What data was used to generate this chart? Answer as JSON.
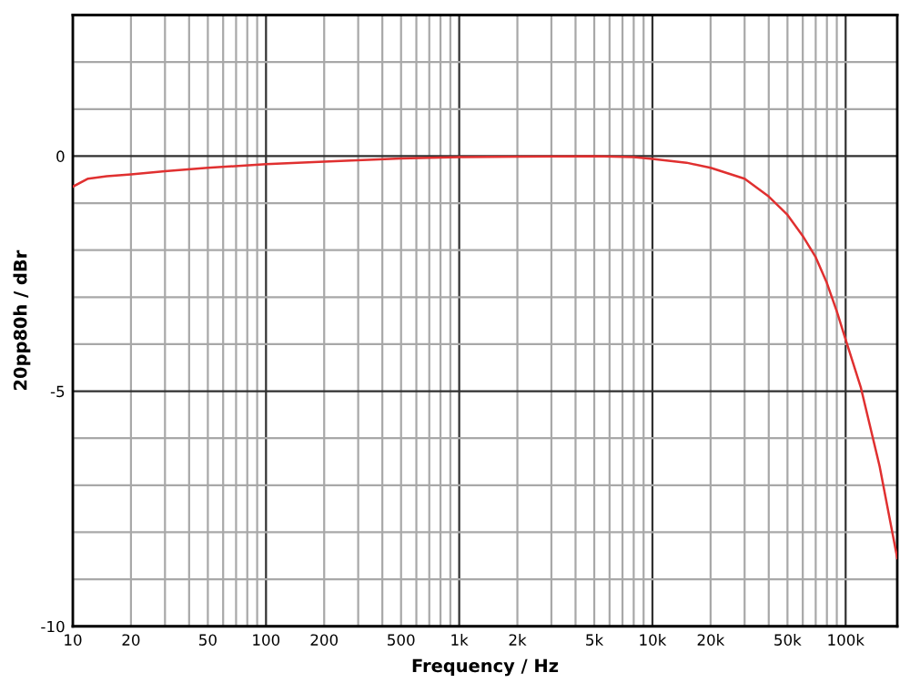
{
  "chart_data": {
    "type": "line",
    "xlabel": "Frequency / Hz",
    "ylabel": "20pp80h / dBr",
    "log": "x",
    "grid": true,
    "marker": "none",
    "line_style": "solid",
    "xlim": [
      10,
      185000
    ],
    "ylim": [
      -10,
      3
    ],
    "xticks": [
      10,
      20,
      {
        "value": 30,
        "label": null
      },
      {
        "value": 40,
        "label": null
      },
      50,
      {
        "value": 60,
        "label": null
      },
      {
        "value": 70,
        "label": null
      },
      {
        "value": 80,
        "label": null
      },
      {
        "value": 90,
        "label": null
      },
      100,
      200,
      {
        "value": 300,
        "label": null
      },
      {
        "value": 400,
        "label": null
      },
      500,
      {
        "value": 600,
        "label": null
      },
      {
        "value": 700,
        "label": null
      },
      {
        "value": 800,
        "label": null
      },
      {
        "value": 900,
        "label": null
      },
      {
        "value": 1000,
        "label": "1k"
      },
      {
        "value": 2000,
        "label": "2k"
      },
      {
        "value": 3000,
        "label": null
      },
      {
        "value": 4000,
        "label": null
      },
      {
        "value": 5000,
        "label": "5k"
      },
      {
        "value": 6000,
        "label": null
      },
      {
        "value": 7000,
        "label": null
      },
      {
        "value": 8000,
        "label": null
      },
      {
        "value": 9000,
        "label": null
      },
      {
        "value": 10000,
        "label": "10k"
      },
      {
        "value": 20000,
        "label": "20k"
      },
      {
        "value": 30000,
        "label": null
      },
      {
        "value": 40000,
        "label": null
      },
      {
        "value": 50000,
        "label": "50k"
      },
      {
        "value": 60000,
        "label": null
      },
      {
        "value": 70000,
        "label": null
      },
      {
        "value": 80000,
        "label": null
      },
      {
        "value": 90000,
        "label": null
      },
      {
        "value": 100000,
        "label": "100k"
      }
    ],
    "yticks": [
      -10,
      {
        "value": -9,
        "label": null
      },
      {
        "value": -8,
        "label": null
      },
      {
        "value": -7,
        "label": null
      },
      {
        "value": -6,
        "label": null
      },
      -5,
      {
        "value": -4,
        "label": null
      },
      {
        "value": -3,
        "label": null
      },
      {
        "value": -2,
        "label": null
      },
      {
        "value": -1,
        "label": null
      },
      0,
      {
        "value": 1,
        "label": null
      },
      {
        "value": 2,
        "label": null
      },
      {
        "value": 3,
        "label": null
      }
    ],
    "series": [
      {
        "color": "#e03030",
        "x": [
          10,
          12,
          15,
          20,
          30,
          50,
          100,
          200,
          500,
          1000,
          2000,
          5000,
          8000,
          10000,
          15000,
          20000,
          30000,
          40000,
          50000,
          60000,
          70000,
          80000,
          90000,
          100000,
          120000,
          150000,
          185000
        ],
        "values": [
          -0.65,
          -0.48,
          -0.43,
          -0.39,
          -0.32,
          -0.25,
          -0.17,
          -0.12,
          -0.05,
          -0.02,
          -0.01,
          0,
          -0.02,
          -0.06,
          -0.14,
          -0.25,
          -0.48,
          -0.86,
          -1.25,
          -1.7,
          -2.15,
          -2.7,
          -3.3,
          -3.9,
          -4.93,
          -6.6,
          -8.55
        ]
      }
    ]
  }
}
